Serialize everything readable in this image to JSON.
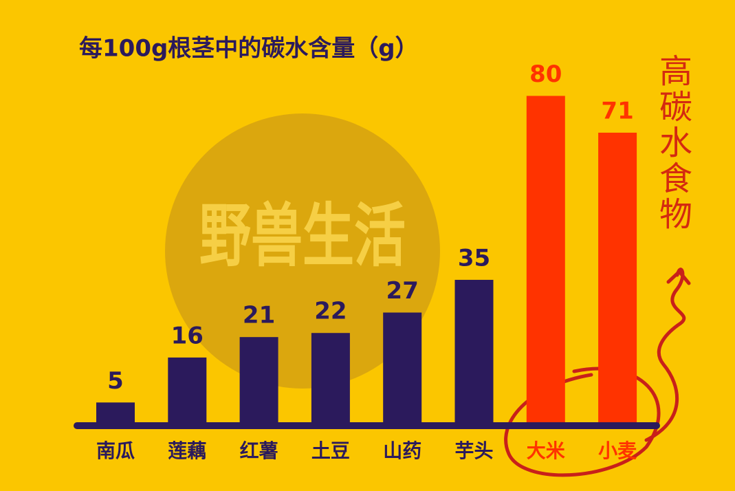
{
  "chart_data": {
    "type": "bar",
    "title": "每100g根茎中的碳水含量（g）",
    "annotation": "高碳水食物",
    "watermark": "野兽生活",
    "categories": [
      "南瓜",
      "莲藕",
      "红薯",
      "土豆",
      "山药",
      "芋头",
      "大米",
      "小麦"
    ],
    "values": [
      5,
      16,
      21,
      22,
      27,
      35,
      80,
      71
    ],
    "colors": [
      "#2b1a5c",
      "#2b1a5c",
      "#2b1a5c",
      "#2b1a5c",
      "#2b1a5c",
      "#2b1a5c",
      "#ff3300",
      "#ff3300"
    ],
    "ylim": [
      0,
      90
    ]
  }
}
